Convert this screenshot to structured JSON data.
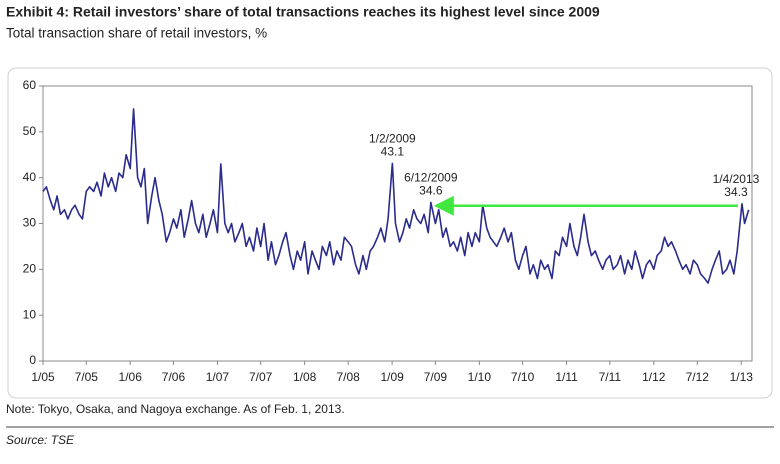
{
  "chart_data": {
    "type": "line",
    "title": "Exhibit 4: Retail investors’ share of total transactions reaches its highest level since 2009",
    "subtitle": "Total transaction share of retail investors, %",
    "note": "Note: Tokyo, Osaka, and Nagoya exchange. As of Feb. 1, 2013.",
    "source": "Source: TSE",
    "x": [
      "2005-01-01",
      "2005-01-15",
      "2005-02-01",
      "2005-02-15",
      "2005-03-01",
      "2005-03-15",
      "2005-04-01",
      "2005-04-15",
      "2005-05-01",
      "2005-05-15",
      "2005-06-01",
      "2005-06-15",
      "2005-07-01",
      "2005-07-15",
      "2005-08-01",
      "2005-08-15",
      "2005-09-01",
      "2005-09-15",
      "2005-10-01",
      "2005-10-15",
      "2005-11-01",
      "2005-11-15",
      "2005-12-01",
      "2005-12-15",
      "2006-01-01",
      "2006-01-15",
      "2006-02-01",
      "2006-02-15",
      "2006-03-01",
      "2006-03-15",
      "2006-04-01",
      "2006-04-15",
      "2006-05-01",
      "2006-05-15",
      "2006-06-01",
      "2006-06-15",
      "2006-07-01",
      "2006-07-15",
      "2006-08-01",
      "2006-08-15",
      "2006-09-01",
      "2006-09-15",
      "2006-10-01",
      "2006-10-15",
      "2006-11-01",
      "2006-11-15",
      "2006-12-01",
      "2006-12-15",
      "2007-01-01",
      "2007-01-15",
      "2007-02-01",
      "2007-02-15",
      "2007-03-01",
      "2007-03-15",
      "2007-04-01",
      "2007-04-15",
      "2007-05-01",
      "2007-05-15",
      "2007-06-01",
      "2007-06-15",
      "2007-07-01",
      "2007-07-15",
      "2007-08-01",
      "2007-08-15",
      "2007-09-01",
      "2007-09-15",
      "2007-10-01",
      "2007-10-15",
      "2007-11-01",
      "2007-11-15",
      "2007-12-01",
      "2007-12-15",
      "2008-01-01",
      "2008-01-15",
      "2008-02-01",
      "2008-02-15",
      "2008-03-01",
      "2008-03-15",
      "2008-04-01",
      "2008-04-15",
      "2008-05-01",
      "2008-05-15",
      "2008-06-01",
      "2008-06-15",
      "2008-07-01",
      "2008-07-15",
      "2008-08-01",
      "2008-08-15",
      "2008-09-01",
      "2008-09-15",
      "2008-10-01",
      "2008-10-15",
      "2008-11-01",
      "2008-11-15",
      "2008-12-01",
      "2008-12-15",
      "2009-01-02",
      "2009-01-15",
      "2009-02-01",
      "2009-02-15",
      "2009-03-01",
      "2009-03-15",
      "2009-04-01",
      "2009-04-15",
      "2009-05-01",
      "2009-05-15",
      "2009-06-01",
      "2009-06-12",
      "2009-07-01",
      "2009-07-15",
      "2009-08-01",
      "2009-08-15",
      "2009-09-01",
      "2009-09-15",
      "2009-10-01",
      "2009-10-15",
      "2009-11-01",
      "2009-11-15",
      "2009-12-01",
      "2009-12-15",
      "2010-01-01",
      "2010-01-15",
      "2010-02-01",
      "2010-02-15",
      "2010-03-01",
      "2010-03-15",
      "2010-04-01",
      "2010-04-15",
      "2010-05-01",
      "2010-05-15",
      "2010-06-01",
      "2010-06-15",
      "2010-07-01",
      "2010-07-15",
      "2010-08-01",
      "2010-08-15",
      "2010-09-01",
      "2010-09-15",
      "2010-10-01",
      "2010-10-15",
      "2010-11-01",
      "2010-11-15",
      "2010-12-01",
      "2010-12-15",
      "2011-01-01",
      "2011-01-15",
      "2011-02-01",
      "2011-02-15",
      "2011-03-01",
      "2011-03-15",
      "2011-04-01",
      "2011-04-15",
      "2011-05-01",
      "2011-05-15",
      "2011-06-01",
      "2011-06-15",
      "2011-07-01",
      "2011-07-15",
      "2011-08-01",
      "2011-08-15",
      "2011-09-01",
      "2011-09-15",
      "2011-10-01",
      "2011-10-15",
      "2011-11-01",
      "2011-11-15",
      "2011-12-01",
      "2011-12-15",
      "2012-01-01",
      "2012-01-15",
      "2012-02-01",
      "2012-02-15",
      "2012-03-01",
      "2012-03-15",
      "2012-04-01",
      "2012-04-15",
      "2012-05-01",
      "2012-05-15",
      "2012-06-01",
      "2012-06-15",
      "2012-07-01",
      "2012-07-15",
      "2012-08-01",
      "2012-08-15",
      "2012-09-01",
      "2012-09-15",
      "2012-10-01",
      "2012-10-15",
      "2012-11-01",
      "2012-11-15",
      "2012-12-01",
      "2012-12-15",
      "2013-01-04",
      "2013-01-15",
      "2013-02-01"
    ],
    "series": [
      {
        "name": "Total transaction share of retail investors",
        "color": "#2b2b8c",
        "values": [
          37,
          38,
          35,
          33,
          36,
          32,
          33,
          31,
          33,
          34,
          32,
          31,
          37,
          38,
          37,
          39,
          36,
          41,
          38,
          40,
          37,
          41,
          40,
          45,
          42,
          55,
          40,
          38,
          42,
          30,
          36,
          40,
          35,
          32,
          26,
          28,
          31,
          29,
          33,
          27,
          31,
          35,
          30,
          28,
          32,
          27,
          30,
          33,
          28,
          43,
          30,
          28,
          30,
          26,
          28,
          30,
          25,
          27,
          24,
          29,
          25,
          30,
          22,
          26,
          21,
          23,
          26,
          28,
          23,
          20,
          24,
          22,
          26,
          19,
          24,
          22,
          20,
          25,
          23,
          26,
          21,
          24,
          22,
          27,
          26,
          25,
          21,
          19,
          23,
          20,
          24,
          25,
          27,
          29,
          26,
          31,
          43.1,
          30,
          26,
          28,
          31,
          29,
          33,
          31,
          30,
          32,
          28,
          34.6,
          30,
          33,
          27,
          29,
          25,
          26,
          24,
          27,
          23,
          28,
          25,
          28,
          26,
          34,
          29,
          27,
          26,
          25,
          27,
          29,
          26,
          28,
          22,
          20,
          23,
          25,
          19,
          21,
          18,
          22,
          20,
          21,
          18,
          24,
          23,
          27,
          25,
          30,
          25,
          23,
          27,
          32,
          26,
          23,
          24,
          22,
          20,
          22,
          23,
          20,
          21,
          23,
          19,
          22,
          20,
          24,
          21,
          18,
          21,
          22,
          20,
          23,
          24,
          27,
          25,
          26,
          24,
          22,
          20,
          21,
          19,
          22,
          21,
          19,
          18,
          17,
          20,
          22,
          24,
          19,
          20,
          22,
          19,
          24,
          34.3,
          30,
          33
        ]
      }
    ],
    "annotations": [
      {
        "label": "1/2/2009",
        "x": "2009-01-02",
        "y": 43.1
      },
      {
        "label": "6/12/2009",
        "x": "2009-06-12",
        "y": 34.6
      },
      {
        "label": "1/4/2013",
        "x": "2013-01-04",
        "y": 34.3
      }
    ],
    "arrow_color": "#3ee83e",
    "xlim": [
      "2005-01-01",
      "2013-02-15"
    ],
    "xticks": [
      {
        "value": "2005-01-01",
        "label": "1/05"
      },
      {
        "value": "2005-07-01",
        "label": "7/05"
      },
      {
        "value": "2006-01-01",
        "label": "1/06"
      },
      {
        "value": "2006-07-01",
        "label": "7/06"
      },
      {
        "value": "2007-01-01",
        "label": "1/07"
      },
      {
        "value": "2007-07-01",
        "label": "7/07"
      },
      {
        "value": "2008-01-01",
        "label": "1/08"
      },
      {
        "value": "2008-07-01",
        "label": "7/08"
      },
      {
        "value": "2009-01-01",
        "label": "1/09"
      },
      {
        "value": "2009-07-01",
        "label": "7/09"
      },
      {
        "value": "2010-01-01",
        "label": "1/10"
      },
      {
        "value": "2010-07-01",
        "label": "7/10"
      },
      {
        "value": "2011-01-01",
        "label": "1/11"
      },
      {
        "value": "2011-07-01",
        "label": "7/11"
      },
      {
        "value": "2012-01-01",
        "label": "1/12"
      },
      {
        "value": "2012-07-01",
        "label": "7/12"
      },
      {
        "value": "2013-01-01",
        "label": "1/13"
      }
    ],
    "ylim": [
      0,
      60
    ],
    "yticks": [
      0,
      10,
      20,
      30,
      40,
      50,
      60
    ],
    "grid": false
  }
}
